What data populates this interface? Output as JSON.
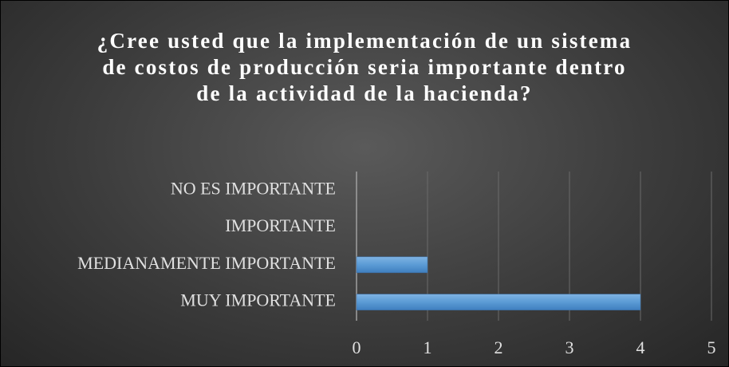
{
  "chart_data": {
    "type": "bar",
    "orientation": "horizontal",
    "title": "¿Cree usted que la implementación de un sistema de costos de producción seria importante dentro de la actividad de la hacienda?",
    "categories": [
      "NO ES IMPORTANTE",
      "IMPORTANTE",
      "MEDIANAMENTE IMPORTANTE",
      "MUY IMPORTANTE"
    ],
    "values": [
      0,
      0,
      1,
      4
    ],
    "color": "#5b9bd5",
    "xlim": [
      0,
      5
    ],
    "xticks": [
      0,
      1,
      2,
      3,
      4,
      5
    ],
    "grid": true
  }
}
